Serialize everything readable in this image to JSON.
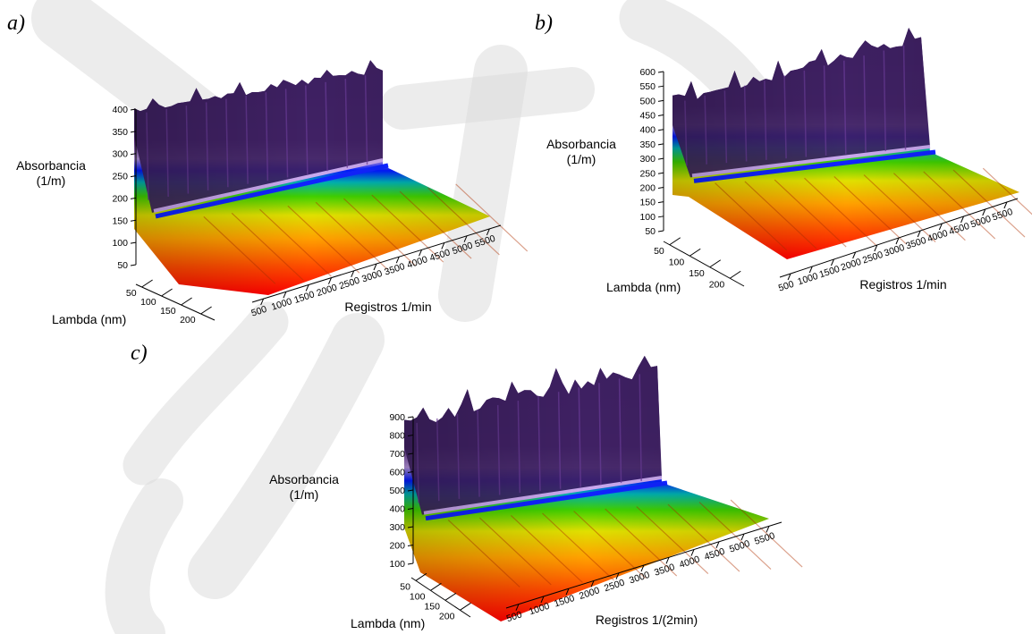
{
  "chart_data": [
    {
      "type": "3d-surface",
      "panel_label": "a)",
      "zlabel_line1": "Absorbancia",
      "zlabel_line2": "(1/m)",
      "zticks": [
        "50",
        "100",
        "150",
        "200",
        "250",
        "300",
        "350",
        "400"
      ],
      "ylabel": "Lambda (nm)",
      "yticks": [
        "50",
        "100",
        "150",
        "200"
      ],
      "xlabel": "Registros 1/min",
      "xticks": [
        "500",
        "1000",
        "1500",
        "2000",
        "2500",
        "3000",
        "3500",
        "4000",
        "4500",
        "5000",
        "5500"
      ],
      "zlim": [
        0,
        420
      ],
      "xlim": [
        0,
        5800
      ],
      "ylim": [
        0,
        240
      ],
      "colormap": [
        "#ff0000",
        "#ff6a00",
        "#ffc000",
        "#c8ff00",
        "#00c000",
        "#00b8c0",
        "#0000ff",
        "#b08ad8",
        "#5a2a82",
        "#3a1f5c"
      ]
    },
    {
      "type": "3d-surface",
      "panel_label": "b)",
      "zlabel_line1": "Absorbancia",
      "zlabel_line2": "(1/m)",
      "zticks": [
        "50",
        "100",
        "150",
        "200",
        "250",
        "300",
        "350",
        "400",
        "450",
        "500",
        "550",
        "600"
      ],
      "ylabel": "Lambda (nm)",
      "yticks": [
        "50",
        "100",
        "150",
        "200"
      ],
      "xlabel": "Registros 1/min",
      "xticks": [
        "500",
        "1000",
        "1500",
        "2000",
        "2500",
        "3000",
        "3500",
        "4000",
        "4500",
        "5000",
        "5500"
      ],
      "zlim": [
        0,
        620
      ],
      "xlim": [
        0,
        5800
      ],
      "ylim": [
        0,
        240
      ],
      "colormap": [
        "#ff0000",
        "#ff6a00",
        "#ffc000",
        "#c8ff00",
        "#00c000",
        "#00b8c0",
        "#0000ff",
        "#b08ad8",
        "#5a2a82",
        "#3a1f5c"
      ]
    },
    {
      "type": "3d-surface",
      "panel_label": "c)",
      "zlabel_line1": "Absorbancia",
      "zlabel_line2": "(1/m)",
      "zticks": [
        "100",
        "200",
        "300",
        "400",
        "500",
        "600",
        "700",
        "800",
        "900"
      ],
      "ylabel": "Lambda (nm)",
      "yticks": [
        "50",
        "100",
        "150",
        "200"
      ],
      "xlabel": "Registros 1/(2min)",
      "xticks": [
        "500",
        "1000",
        "1500",
        "2000",
        "2500",
        "3000",
        "3500",
        "4000",
        "4500",
        "5000",
        "5500"
      ],
      "zlim": [
        0,
        950
      ],
      "xlim": [
        0,
        5800
      ],
      "ylim": [
        0,
        240
      ],
      "colormap": [
        "#ff0000",
        "#ff6a00",
        "#ffc000",
        "#c8ff00",
        "#00c000",
        "#00b8c0",
        "#0000ff",
        "#b08ad8",
        "#5a2a82",
        "#3a1f5c"
      ]
    }
  ]
}
